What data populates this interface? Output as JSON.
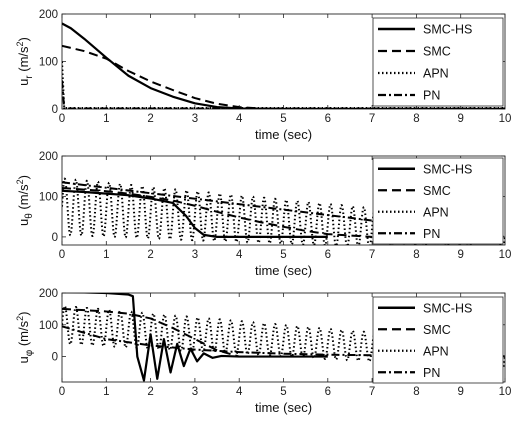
{
  "chart_data": [
    {
      "type": "line",
      "xlabel": "time (sec)",
      "ylabel": "u_r (m/s^2)",
      "ylabel_parts": {
        "base": "u",
        "sub": "r",
        "unit": " (m/s",
        "sup": "2",
        "close": ")"
      },
      "xlim": [
        0,
        10
      ],
      "ylim": [
        0,
        200
      ],
      "xticks": [
        0,
        1,
        2,
        3,
        4,
        5,
        6,
        7,
        8,
        9,
        10
      ],
      "yticks": [
        0,
        100,
        200
      ],
      "legend": "top-right",
      "series": [
        {
          "name": "SMC-HS",
          "style": "solid",
          "x": [
            0,
            0.2,
            0.5,
            1.0,
            1.5,
            2.0,
            2.5,
            3.0,
            3.5,
            4.0,
            5.0,
            10
          ],
          "y": [
            180,
            170,
            148,
            108,
            70,
            44,
            26,
            12,
            4,
            1,
            0,
            0
          ]
        },
        {
          "name": "SMC",
          "style": "dashed",
          "x": [
            0,
            0.5,
            1.0,
            1.5,
            2.0,
            2.5,
            3.0,
            3.5,
            4.0,
            4.5,
            5.0,
            10
          ],
          "y": [
            133,
            122,
            106,
            80,
            58,
            40,
            23,
            11,
            4,
            1,
            0,
            0
          ]
        },
        {
          "name": "APN",
          "style": "dotted",
          "x": [
            0,
            0.05,
            10
          ],
          "y": [
            100,
            2,
            2
          ]
        },
        {
          "name": "PN",
          "style": "dashdot",
          "x": [
            0,
            0.05,
            10
          ],
          "y": [
            60,
            1,
            1
          ]
        }
      ]
    },
    {
      "type": "line",
      "xlabel": "time (sec)",
      "ylabel": "u_θ (m/s^2)",
      "ylabel_parts": {
        "base": "u",
        "sub": "θ",
        "unit": " (m/s",
        "sup": "2",
        "close": ")"
      },
      "xlim": [
        0,
        10
      ],
      "ylim": [
        -20,
        200
      ],
      "xticks": [
        0,
        1,
        2,
        3,
        4,
        5,
        6,
        7,
        8,
        9,
        10
      ],
      "yticks": [
        0,
        100,
        200
      ],
      "legend": "top-right",
      "series": [
        {
          "name": "SMC-HS",
          "style": "solid",
          "x": [
            0,
            0.5,
            1.0,
            1.5,
            2.0,
            2.5,
            2.8,
            3.0,
            3.2,
            3.5,
            4.0,
            5.0,
            6.0
          ],
          "y": [
            114,
            111,
            107,
            103,
            95,
            84,
            52,
            22,
            5,
            0,
            0,
            0,
            0
          ]
        },
        {
          "name": "SMC",
          "style": "dashed",
          "x": [
            0,
            0.5,
            1.0,
            1.5,
            2.0,
            2.5,
            3.0,
            3.5,
            4.0,
            4.5,
            5.0,
            5.5,
            6.0,
            7.0
          ],
          "y": [
            121,
            117,
            113,
            107,
            99,
            90,
            77,
            62,
            48,
            36,
            25,
            15,
            7,
            0
          ]
        },
        {
          "name": "APN",
          "style": "dotted",
          "oscillation": true,
          "center_start": 75,
          "center_end": 0,
          "amplitude_start": 70,
          "amplitude_end": 40,
          "period": 0.25
        },
        {
          "name": "PN",
          "style": "dashdot",
          "x": [
            0,
            10
          ],
          "y": [
            135,
            0
          ]
        }
      ]
    },
    {
      "type": "line",
      "xlabel": "time (sec)",
      "ylabel": "u_φ (m/s^2)",
      "ylabel_parts": {
        "base": "u",
        "sub": "φ",
        "unit": " (m/s",
        "sup": "2",
        "close": ")"
      },
      "xlim": [
        0,
        10
      ],
      "ylim": [
        -80,
        200
      ],
      "xticks": [
        0,
        1,
        2,
        3,
        4,
        5,
        6,
        7,
        8,
        9,
        10
      ],
      "yticks": [
        0,
        100,
        200
      ],
      "legend": "top-right",
      "series": [
        {
          "name": "SMC-HS",
          "style": "solid",
          "x": [
            0,
            0.5,
            1.0,
            1.5,
            1.6,
            1.7,
            1.85,
            2.0,
            2.15,
            2.3,
            2.45,
            2.6,
            2.75,
            2.9,
            3.05,
            3.2,
            3.4,
            3.6,
            4.0,
            6.0
          ],
          "y": [
            203,
            202,
            200,
            195,
            190,
            0,
            -75,
            70,
            -70,
            55,
            -50,
            40,
            -30,
            25,
            -15,
            10,
            -4,
            2,
            0,
            0
          ]
        },
        {
          "name": "SMC",
          "style": "dashed",
          "x": [
            0,
            0.5,
            1.0,
            1.5,
            2.0,
            2.5,
            3.0,
            3.5,
            4.0
          ],
          "y": [
            150,
            146,
            142,
            135,
            120,
            90,
            55,
            20,
            0
          ]
        },
        {
          "name": "APN",
          "style": "dotted",
          "oscillation": true,
          "center_start": 100,
          "center_end": 0,
          "amplitude_start": 60,
          "amplitude_end": 40,
          "period": 0.25
        },
        {
          "name": "PN",
          "style": "dashdot",
          "x": [
            0,
            1,
            2,
            3,
            4,
            5,
            6,
            7,
            8,
            9,
            10
          ],
          "y": [
            95,
            55,
            35,
            22,
            14,
            9,
            6,
            4,
            3,
            2,
            1
          ]
        }
      ]
    }
  ]
}
